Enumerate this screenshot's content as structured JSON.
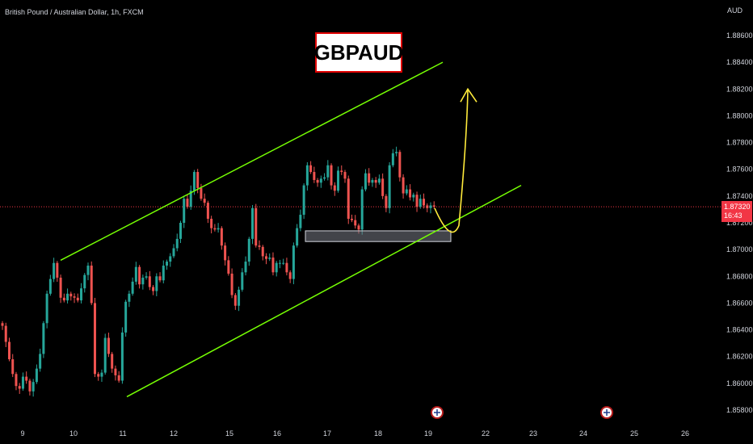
{
  "header": {
    "symbol_text": "British Pound / Australian Dollar, 1h, FXCM"
  },
  "title_box": {
    "text": "GBPAUD"
  },
  "axis": {
    "currency": "AUD"
  },
  "price_badge": {
    "price": "1.87320",
    "countdown": "16:43"
  },
  "colors": {
    "background": "#000000",
    "bull": "#26a69a",
    "bear": "#ef5350",
    "channel": "#76ff03",
    "projection": "#ffeb3b",
    "price_line": "#f23645",
    "text": "#d1d4dc"
  },
  "icons": [
    "event-flag-icon",
    "event-flag-icon"
  ],
  "chart_data": {
    "type": "candlestick",
    "title": "GBPAUD",
    "ylim": [
      1.8578,
      1.887
    ],
    "y_ticks": [
      "1.88600",
      "1.88400",
      "1.88200",
      "1.88000",
      "1.87800",
      "1.87600",
      "1.87400",
      "1.87200",
      "1.87000",
      "1.86800",
      "1.86600",
      "1.86400",
      "1.86200",
      "1.86000",
      "1.85800"
    ],
    "x_ticks": [
      "9",
      "10",
      "11",
      "12",
      "15",
      "16",
      "17",
      "18",
      "19",
      "22",
      "23",
      "24",
      "25",
      "26"
    ],
    "current_price": 1.8732,
    "channel": {
      "upper": {
        "from": [
          "9",
          1.8692
        ],
        "to": [
          "22",
          1.884
        ]
      },
      "lower": {
        "from": [
          "11",
          1.859
        ],
        "to": [
          "22",
          1.8748
        ]
      }
    },
    "support_zone": {
      "from_day": "17",
      "to_day": "19",
      "low": 1.8706,
      "high": 1.8714
    },
    "projection": {
      "from_price": 1.8731,
      "low": 1.8712,
      "target": 1.882
    },
    "closes": [
      1.8643,
      1.8631,
      1.8618,
      1.8607,
      1.8598,
      1.8596,
      1.8605,
      1.8602,
      1.8594,
      1.8601,
      1.8611,
      1.8622,
      1.8645,
      1.8667,
      1.8678,
      1.869,
      1.8679,
      1.8664,
      1.8662,
      1.8667,
      1.8665,
      1.8664,
      1.8662,
      1.8671,
      1.8681,
      1.8688,
      1.866,
      1.8607,
      1.8605,
      1.8608,
      1.8634,
      1.8622,
      1.8611,
      1.8606,
      1.8602,
      1.8638,
      1.8661,
      1.8667,
      1.8676,
      1.8687,
      1.8674,
      1.8679,
      1.868,
      1.8672,
      1.8669,
      1.868,
      1.8677,
      1.8688,
      1.8691,
      1.8695,
      1.8701,
      1.8708,
      1.872,
      1.8738,
      1.8732,
      1.8744,
      1.8758,
      1.8746,
      1.8738,
      1.8735,
      1.8723,
      1.8716,
      1.8715,
      1.8716,
      1.8703,
      1.8692,
      1.8682,
      1.8666,
      1.8658,
      1.867,
      1.8683,
      1.8691,
      1.8708,
      1.8731,
      1.8703,
      1.8702,
      1.8695,
      1.8693,
      1.8694,
      1.8683,
      1.869,
      1.869,
      1.869,
      1.8683,
      1.8678,
      1.8703,
      1.8716,
      1.8726,
      1.8748,
      1.8763,
      1.8758,
      1.8752,
      1.875,
      1.8753,
      1.8754,
      1.8763,
      1.8748,
      1.8744,
      1.8759,
      1.8758,
      1.8753,
      1.8723,
      1.8722,
      1.8718,
      1.8715,
      1.8745,
      1.8757,
      1.875,
      1.8752,
      1.875,
      1.8753,
      1.874,
      1.8731,
      1.8763,
      1.8772,
      1.8773,
      1.8754,
      1.8742,
      1.8745,
      1.8739,
      1.8741,
      1.8732,
      1.8738,
      1.8733,
      1.8731,
      1.8733,
      1.8732
    ]
  }
}
